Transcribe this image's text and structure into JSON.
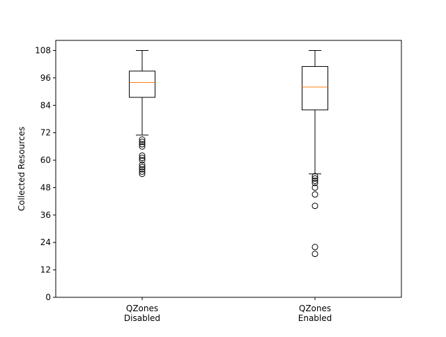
{
  "chart_data": {
    "type": "box",
    "title": "",
    "xlabel": "",
    "ylabel": "Collected Resources",
    "ylim": [
      0,
      108
    ],
    "yticks": [
      0,
      12,
      24,
      36,
      48,
      60,
      72,
      84,
      96,
      108
    ],
    "grid": false,
    "categories": [
      "QZones\nDisabled",
      "QZones\nEnabled"
    ],
    "boxes": [
      {
        "category": "QZones\nDisabled",
        "whisker_low": 71,
        "q1": 87.5,
        "median": 94,
        "q3": 99,
        "whisker_high": 108,
        "outliers": [
          69,
          68,
          67,
          66,
          62,
          61,
          60,
          58,
          57,
          56,
          55,
          54
        ]
      },
      {
        "category": "QZones\nEnabled",
        "whisker_low": 54,
        "q1": 82,
        "median": 92,
        "q3": 101,
        "whisker_high": 108,
        "outliers": [
          53,
          52,
          51,
          50,
          48,
          45,
          40,
          22,
          19
        ]
      }
    ],
    "colors": {
      "box": "#000000",
      "median": "#ff7f0e",
      "outlier": "#000000"
    }
  }
}
